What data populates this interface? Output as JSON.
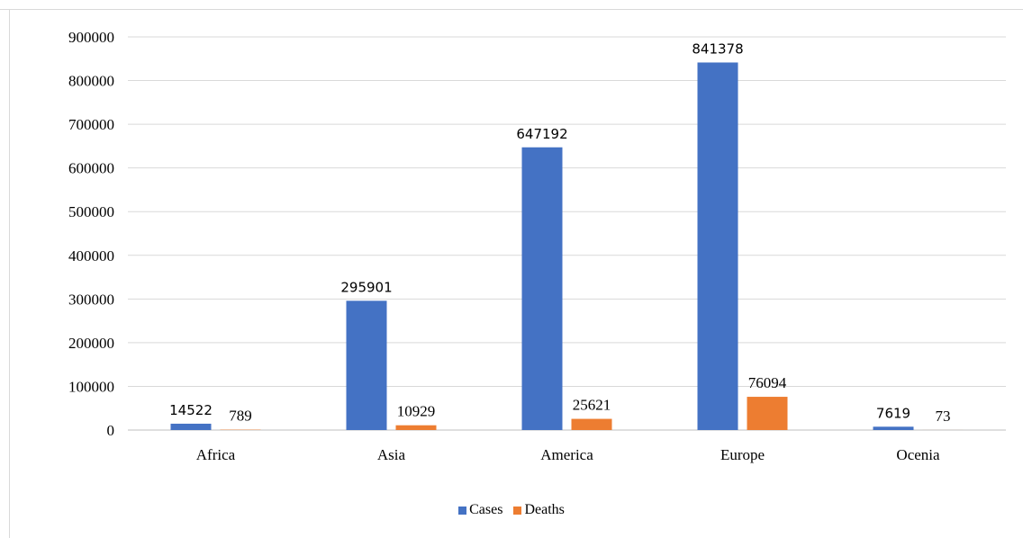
{
  "chart_data": {
    "type": "bar",
    "title": "",
    "xlabel": "",
    "ylabel": "",
    "categories": [
      "Africa",
      "Asia",
      "America",
      "Europe",
      "Ocenia"
    ],
    "series": [
      {
        "name": "Cases",
        "color": "#4472c4",
        "values": [
          14522,
          295901,
          647192,
          841378,
          7619
        ]
      },
      {
        "name": "Deaths",
        "color": "#ed7d31",
        "values": [
          789,
          10929,
          25621,
          76094,
          73
        ]
      }
    ],
    "ylim": [
      0,
      900000
    ],
    "yticks": [
      "0",
      "100000",
      "200000",
      "300000",
      "400000",
      "500000",
      "600000",
      "700000",
      "800000",
      "900000"
    ],
    "grid": true,
    "legend": "bottom"
  }
}
